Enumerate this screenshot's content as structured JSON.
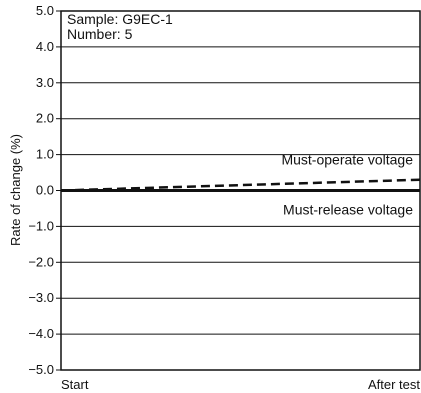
{
  "chart_data": {
    "type": "line",
    "ylabel": "Rate of change (%)",
    "ylim": [
      -5.0,
      5.0
    ],
    "yticks": [
      5.0,
      4.0,
      3.0,
      2.0,
      1.0,
      0.0,
      -1.0,
      -2.0,
      -3.0,
      -4.0,
      -5.0
    ],
    "ytick_labels": [
      "5.0",
      "4.0",
      "3.0",
      "2.0",
      "1.0",
      "0.0",
      "−1.0",
      "−2.0",
      "−3.0",
      "−4.0",
      "−5.0"
    ],
    "xcategories": [
      "Start",
      "After test"
    ],
    "grid": true,
    "annotations": [
      "Sample: G9EC-1",
      "Number: 5"
    ],
    "series": [
      {
        "name": "Must-operate voltage",
        "style": "dashed",
        "values": [
          0.0,
          0.3
        ]
      },
      {
        "name": "Must-release voltage",
        "style": "solid",
        "values": [
          0.0,
          0.0
        ]
      }
    ]
  },
  "colors": {
    "line": "#111111",
    "grid": "#111111",
    "background": "#ffffff"
  }
}
